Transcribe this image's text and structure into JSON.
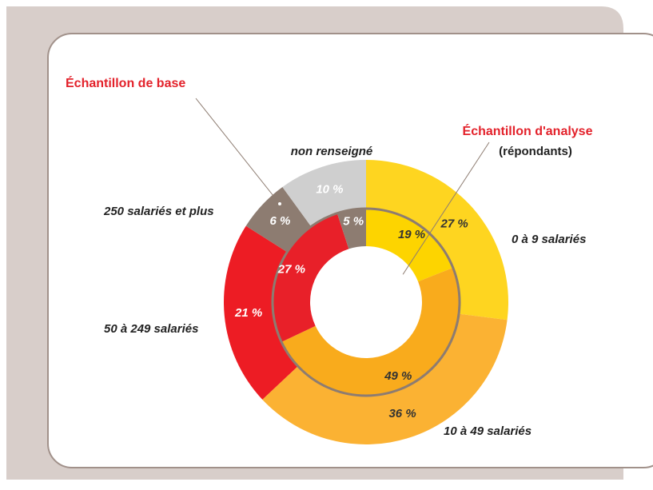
{
  "chart_data": {
    "type": "nested-donut",
    "categories": [
      "0 à 9 salariés",
      "10 à 49 salariés",
      "50 à 249 salariés",
      "250 salariés et plus",
      "non renseigné"
    ],
    "series": [
      {
        "name": "Échantillon de base",
        "colors": [
          "#fed520",
          "#fbb233",
          "#ed1c24",
          "#8d7c71",
          "#cfcfcf"
        ],
        "values": [
          27,
          36,
          21,
          6,
          10
        ],
        "value_labels": [
          "27 %",
          "36 %",
          "21 %",
          "6 %",
          "10 %"
        ]
      },
      {
        "name": "Échantillon d'analyse",
        "colors": [
          "#fdd400",
          "#f9ab1c",
          "#e82029",
          "#8d7c71",
          "#cfcfcf"
        ],
        "values": [
          19,
          49,
          27,
          5,
          null
        ],
        "value_labels": [
          "19 %",
          "49 %",
          "27 %",
          "5 %",
          null
        ]
      }
    ],
    "annotations": [
      "(répondants)"
    ]
  }
}
